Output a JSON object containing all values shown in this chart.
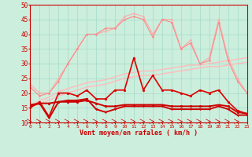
{
  "xlabel": "Vent moyen/en rafales ( km/h )",
  "xlim": [
    0,
    23
  ],
  "ylim": [
    10,
    50
  ],
  "yticks": [
    10,
    15,
    20,
    25,
    30,
    35,
    40,
    45,
    50
  ],
  "xticks": [
    0,
    1,
    2,
    3,
    4,
    5,
    6,
    7,
    8,
    9,
    10,
    11,
    12,
    13,
    14,
    15,
    16,
    17,
    18,
    19,
    20,
    21,
    22,
    23
  ],
  "background_color": "#cceedd",
  "grid_color": "#aaddcc",
  "series": [
    {
      "y": [
        23,
        20,
        20,
        25,
        30,
        35,
        40,
        40,
        41,
        42,
        46,
        47,
        46,
        40,
        45,
        45,
        35,
        38,
        30,
        32,
        45,
        32,
        25,
        20
      ],
      "color": "#ffaaaa",
      "lw": 0.8,
      "marker": "o",
      "ms": 1.5
    },
    {
      "y": [
        15.5,
        17.5,
        18.5,
        20.5,
        21.5,
        22.5,
        23.5,
        24.0,
        24.5,
        25.5,
        26.5,
        27.0,
        27.5,
        27.5,
        28.0,
        28.5,
        29.0,
        29.5,
        29.5,
        30.0,
        30.5,
        31.0,
        31.5,
        32.0
      ],
      "color": "#ffbbbb",
      "lw": 1.0,
      "marker": null,
      "ms": 0
    },
    {
      "y": [
        15.0,
        16.5,
        17.5,
        19.0,
        20.0,
        21.0,
        22.0,
        22.5,
        23.0,
        24.0,
        25.0,
        25.5,
        26.0,
        26.0,
        26.5,
        27.0,
        27.5,
        28.0,
        28.5,
        29.0,
        29.0,
        29.5,
        30.0,
        30.5
      ],
      "color": "#ffbbbb",
      "lw": 1.0,
      "marker": null,
      "ms": 0
    },
    {
      "y": [
        22,
        19,
        20,
        24,
        30,
        35,
        40,
        40,
        42,
        42,
        45,
        46,
        45,
        39,
        45,
        44,
        35,
        37,
        30,
        31,
        44,
        31,
        24,
        20
      ],
      "color": "#ff8888",
      "lw": 0.8,
      "marker": "o",
      "ms": 1.5
    },
    {
      "y": [
        15,
        17,
        12,
        20,
        20,
        19,
        21,
        18,
        18,
        21,
        21,
        32,
        21,
        26,
        21,
        21,
        20,
        19,
        21,
        20,
        21,
        17,
        14,
        13
      ],
      "color": "#dd0000",
      "lw": 1.2,
      "marker": "o",
      "ms": 2.0
    },
    {
      "y": [
        16.0,
        16.5,
        16.5,
        17.0,
        17.0,
        17.0,
        17.5,
        16.5,
        15.5,
        15.5,
        16.0,
        16.0,
        16.0,
        16.0,
        16.0,
        15.5,
        15.5,
        15.5,
        15.5,
        15.5,
        16.0,
        15.5,
        13.5,
        13.0
      ],
      "color": "#cc0000",
      "lw": 1.4,
      "marker": "o",
      "ms": 2.0
    },
    {
      "y": [
        15.5,
        16.5,
        11.5,
        17.0,
        17.5,
        17.5,
        18.0,
        14.5,
        13.5,
        14.5,
        15.5,
        15.5,
        15.5,
        15.5,
        15.5,
        14.5,
        14.5,
        14.5,
        14.5,
        14.5,
        15.5,
        14.5,
        12.5,
        12.5
      ],
      "color": "#cc0000",
      "lw": 1.4,
      "marker": "v",
      "ms": 2.0
    }
  ]
}
